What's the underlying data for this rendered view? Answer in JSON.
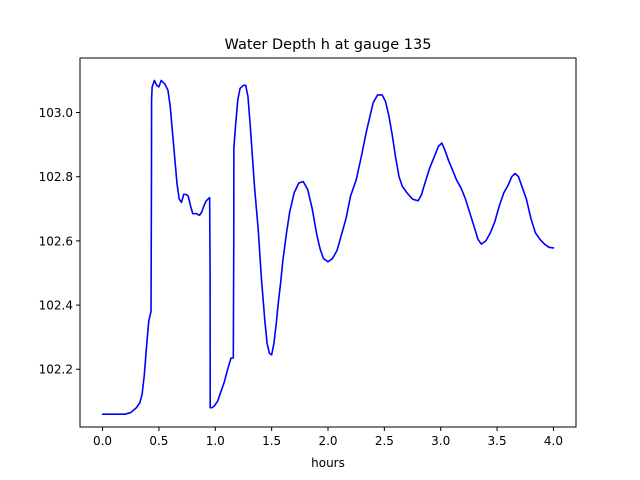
{
  "chart_data": {
    "type": "line",
    "title": "Water Depth h at gauge 135",
    "xlabel": "hours",
    "ylabel": "",
    "xlim": [
      -0.2,
      4.2
    ],
    "ylim": [
      102.02,
      103.17
    ],
    "xticks": [
      0.0,
      0.5,
      1.0,
      1.5,
      2.0,
      2.5,
      3.0,
      3.5,
      4.0
    ],
    "xtick_labels": [
      "0.0",
      "0.5",
      "1.0",
      "1.5",
      "2.0",
      "2.5",
      "3.0",
      "3.5",
      "4.0"
    ],
    "yticks": [
      102.2,
      102.4,
      102.6,
      102.8,
      103.0
    ],
    "ytick_labels": [
      "102.2",
      "102.4",
      "102.6",
      "102.8",
      "103.0"
    ],
    "grid": false,
    "legend": "none",
    "series": [
      {
        "color": "#0000ff",
        "x": [
          0.0,
          0.1,
          0.2,
          0.25,
          0.3,
          0.33,
          0.35,
          0.37,
          0.39,
          0.41,
          0.43,
          0.434,
          0.435,
          0.44,
          0.46,
          0.48,
          0.5,
          0.52,
          0.55,
          0.58,
          0.6,
          0.62,
          0.64,
          0.66,
          0.68,
          0.7,
          0.72,
          0.74,
          0.76,
          0.78,
          0.8,
          0.83,
          0.86,
          0.88,
          0.9,
          0.92,
          0.95,
          0.954,
          0.955,
          0.97,
          0.99,
          1.02,
          1.05,
          1.08,
          1.11,
          1.14,
          1.16,
          1.164,
          1.165,
          1.18,
          1.2,
          1.22,
          1.25,
          1.27,
          1.29,
          1.31,
          1.33,
          1.35,
          1.38,
          1.41,
          1.44,
          1.46,
          1.48,
          1.5,
          1.52,
          1.54,
          1.56,
          1.58,
          1.6,
          1.63,
          1.66,
          1.7,
          1.74,
          1.78,
          1.82,
          1.86,
          1.9,
          1.93,
          1.96,
          2.0,
          2.04,
          2.08,
          2.12,
          2.16,
          2.2,
          2.25,
          2.3,
          2.34,
          2.38,
          2.4,
          2.44,
          2.48,
          2.51,
          2.54,
          2.57,
          2.6,
          2.63,
          2.66,
          2.7,
          2.75,
          2.8,
          2.83,
          2.86,
          2.9,
          2.94,
          2.98,
          3.01,
          3.04,
          3.07,
          3.1,
          3.14,
          3.18,
          3.22,
          3.26,
          3.3,
          3.33,
          3.36,
          3.4,
          3.44,
          3.48,
          3.52,
          3.56,
          3.6,
          3.63,
          3.66,
          3.69,
          3.72,
          3.76,
          3.8,
          3.84,
          3.88,
          3.92,
          3.96,
          4.0
        ],
        "y": [
          102.06,
          102.06,
          102.06,
          102.065,
          102.08,
          102.095,
          102.12,
          102.18,
          102.27,
          102.35,
          102.38,
          102.8,
          103.04,
          103.08,
          103.1,
          103.085,
          103.08,
          103.1,
          103.09,
          103.07,
          103.02,
          102.94,
          102.86,
          102.78,
          102.73,
          102.72,
          102.745,
          102.745,
          102.74,
          102.71,
          102.685,
          102.685,
          102.68,
          102.69,
          102.71,
          102.725,
          102.735,
          102.5,
          102.08,
          102.08,
          102.085,
          102.1,
          102.13,
          102.16,
          102.2,
          102.235,
          102.235,
          102.6,
          102.89,
          102.96,
          103.04,
          103.075,
          103.085,
          103.085,
          103.05,
          102.96,
          102.86,
          102.76,
          102.64,
          102.48,
          102.35,
          102.28,
          102.25,
          102.245,
          102.28,
          102.34,
          102.41,
          102.47,
          102.54,
          102.62,
          102.69,
          102.75,
          102.78,
          102.785,
          102.76,
          102.7,
          102.62,
          102.575,
          102.545,
          102.535,
          102.545,
          102.57,
          102.62,
          102.67,
          102.74,
          102.79,
          102.87,
          102.94,
          103.0,
          103.03,
          103.055,
          103.055,
          103.035,
          102.99,
          102.93,
          102.86,
          102.8,
          102.77,
          102.75,
          102.73,
          102.725,
          102.745,
          102.78,
          102.825,
          102.86,
          102.895,
          102.905,
          102.88,
          102.85,
          102.825,
          102.79,
          102.765,
          102.73,
          102.685,
          102.64,
          102.605,
          102.59,
          102.6,
          102.625,
          102.66,
          102.71,
          102.75,
          102.775,
          102.8,
          102.81,
          102.8,
          102.77,
          102.73,
          102.67,
          102.625,
          102.605,
          102.59,
          102.58,
          102.578
        ]
      }
    ]
  }
}
